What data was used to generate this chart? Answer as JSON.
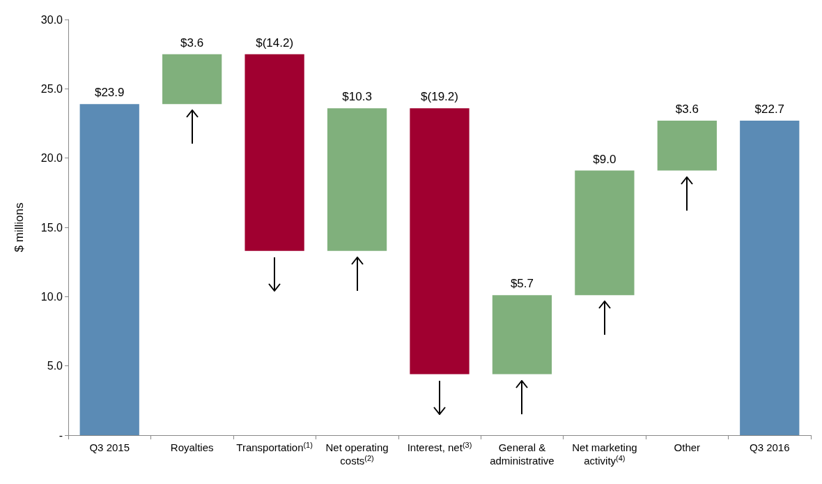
{
  "chart_data": {
    "type": "bar",
    "ylabel": "$ millions",
    "categories": [
      "Q3 2015",
      "Royalties",
      "Transportation$^{(1)}$",
      "Net operating costs$^{(2)}$",
      "Interest, net$^{(3)}$",
      "General & administrative",
      "Net marketing activity$^{(4)}$",
      "Other",
      "Q3 2016"
    ],
    "values": [
      23.9,
      3.6,
      -14.2,
      10.3,
      -19.2,
      5.7,
      9.0,
      3.6,
      22.7
    ],
    "base": [
      0,
      23.9,
      27.5,
      13.3,
      23.6,
      4.4,
      10.1,
      19.1,
      0
    ],
    "colors": [
      "#5b8bb5",
      "#80b07c",
      "#a00030",
      "#80b07c",
      "#a00030",
      "#80b07c",
      "#80b07c",
      "#80b07c",
      "#5b8bb5"
    ],
    "value_labels": [
      "$23.9",
      "$3.6",
      "$(14.2)",
      "$10.3",
      "$(19.2)",
      "$5.7",
      "$9.0",
      "$3.6",
      "$22.7"
    ],
    "ylim": [
      0,
      30
    ],
    "yticks": [
      {
        "value": 0,
        "label": "-"
      },
      {
        "value": 5,
        "label": "5.0"
      },
      {
        "value": 10,
        "label": "10.0"
      },
      {
        "value": 15,
        "label": "15.0"
      },
      {
        "value": 20,
        "label": "20.0"
      },
      {
        "value": 25,
        "label": "25.0"
      },
      {
        "value": 30,
        "label": "30.0"
      }
    ],
    "grid": false
  }
}
